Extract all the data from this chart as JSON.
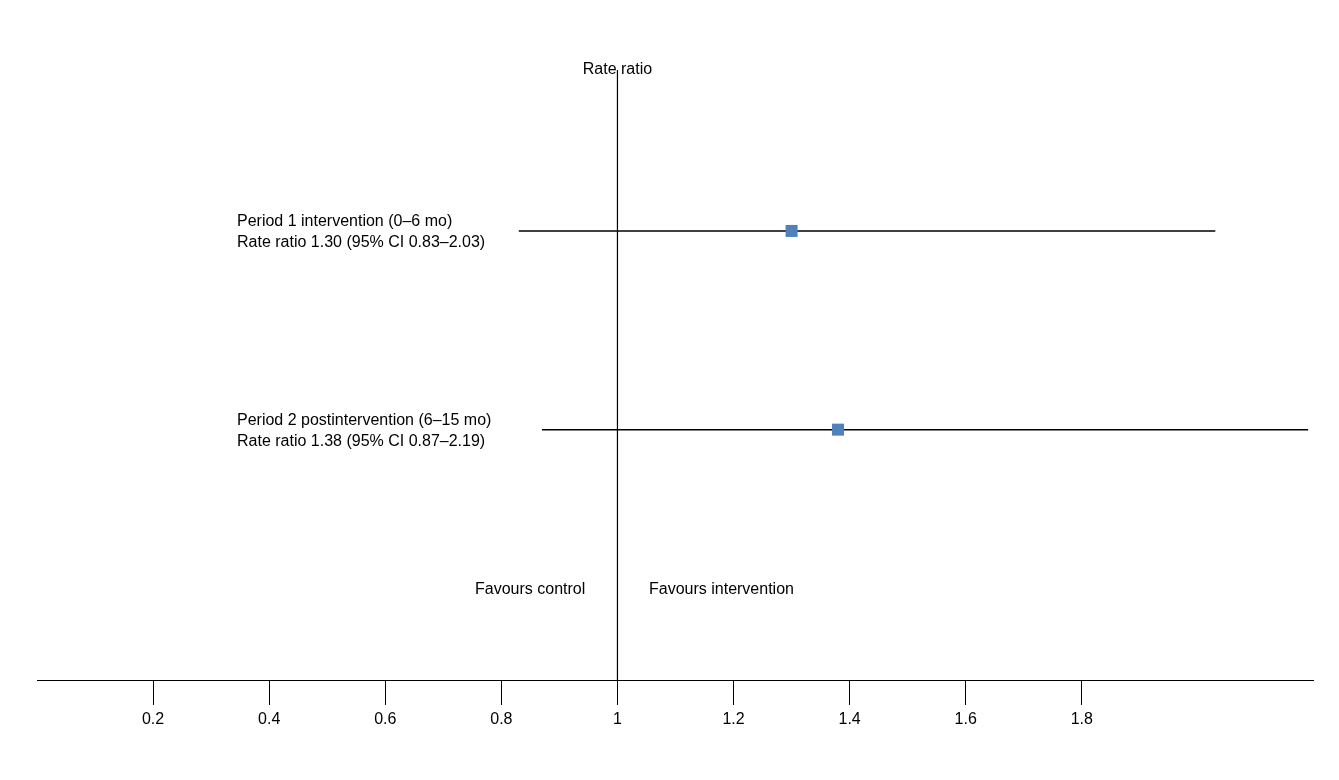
{
  "chart_data": {
    "type": "scatter",
    "orientation": "horizontal",
    "title": "Rate ratio",
    "categories": [
      "Period 1 intervention (0–6 mo)\nRate ratio 1.30 (95% CI 0.83–2.03)",
      "Period 2 postintervention (6–15 mo)\nRate ratio 1.38 (95% CI 0.87–2.19)"
    ],
    "values": [
      1.3,
      1.38
    ],
    "errors": [
      [
        0.83,
        2.03
      ],
      [
        0.87,
        2.19
      ]
    ],
    "color": "#4f81bd",
    "marker": "square",
    "xlim": [
      0,
      2.2
    ],
    "xticks": [
      0.2,
      0.4,
      0.6,
      0.8,
      1,
      1.2,
      1.4,
      1.6,
      1.8
    ],
    "ref_lines": [
      {
        "axis": "x",
        "value": 1,
        "color": "#000000"
      }
    ],
    "annotations": [
      "Favours control",
      "Favours intervention"
    ]
  }
}
